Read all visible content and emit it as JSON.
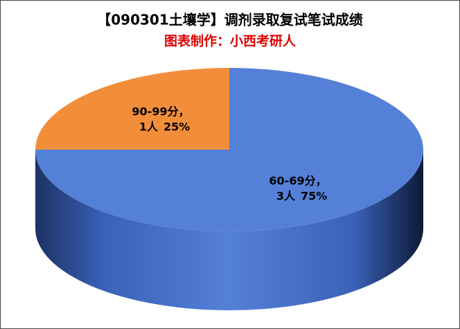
{
  "chart_data": {
    "type": "pie",
    "title": "【090301土壤学】调剂录取复试笔试成绩",
    "subtitle": "图表制作：小西考研人",
    "categories": [
      "60-69分，",
      "90-99分，"
    ],
    "counts": [
      3,
      1
    ],
    "count_labels": [
      "3人",
      "1人"
    ],
    "values": [
      75,
      25
    ],
    "value_labels": [
      "75%",
      "25%"
    ],
    "colors": [
      "#5580d8",
      "#f28e3a"
    ],
    "start_angle": 90,
    "direction": "clockwise"
  }
}
